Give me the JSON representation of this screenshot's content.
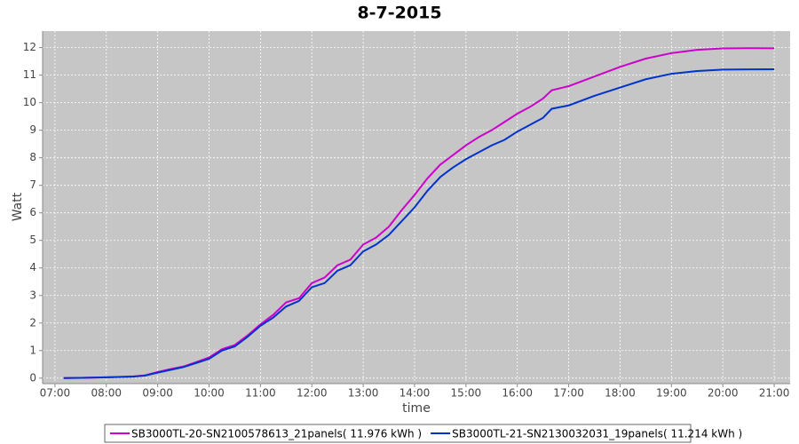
{
  "chart_data": {
    "type": "line",
    "title": "8-7-2015",
    "x_label": "time",
    "y_label": "Watt",
    "x": [
      7.17,
      7.5,
      8,
      8.5,
      8.75,
      9,
      9.25,
      9.5,
      9.75,
      10,
      10.25,
      10.5,
      10.75,
      11,
      11.25,
      11.5,
      11.75,
      12,
      12.25,
      12.5,
      12.75,
      13,
      13.25,
      13.5,
      13.75,
      14,
      14.25,
      14.5,
      14.75,
      15,
      15.25,
      15.5,
      15.75,
      16,
      16.25,
      16.5,
      16.67,
      17,
      17.5,
      18,
      18.5,
      19,
      19.5,
      20,
      20.5,
      21
    ],
    "series": [
      {
        "name": "SB3000TL-20-SN2100578613_21panels( 11.976 kWh )",
        "color": "#cc00cc",
        "values": [
          0,
          0.01,
          0.03,
          0.06,
          0.1,
          0.22,
          0.33,
          0.42,
          0.58,
          0.75,
          1.05,
          1.2,
          1.55,
          1.95,
          2.3,
          2.75,
          2.9,
          3.45,
          3.65,
          4.1,
          4.3,
          4.85,
          5.1,
          5.5,
          6.1,
          6.65,
          7.25,
          7.75,
          8.1,
          8.45,
          8.75,
          9.0,
          9.3,
          9.6,
          9.85,
          10.15,
          10.45,
          10.6,
          10.95,
          11.3,
          11.6,
          11.8,
          11.92,
          11.97,
          11.98,
          11.976
        ]
      },
      {
        "name": "SB3000TL-21-SN2130032031_19panels( 11.214 kWh )",
        "color": "#0033cc",
        "values": [
          0,
          0.01,
          0.03,
          0.05,
          0.09,
          0.2,
          0.3,
          0.4,
          0.55,
          0.7,
          1.0,
          1.15,
          1.5,
          1.9,
          2.2,
          2.6,
          2.8,
          3.3,
          3.45,
          3.9,
          4.1,
          4.6,
          4.85,
          5.2,
          5.7,
          6.2,
          6.8,
          7.3,
          7.65,
          7.95,
          8.2,
          8.45,
          8.65,
          8.95,
          9.2,
          9.45,
          9.78,
          9.9,
          10.25,
          10.55,
          10.85,
          11.05,
          11.15,
          11.2,
          11.21,
          11.214
        ]
      }
    ],
    "xlim": [
      6.76,
      21.31
    ],
    "xticks": [
      {
        "value": 7,
        "label": "07:00"
      },
      {
        "value": 8,
        "label": "08:00"
      },
      {
        "value": 9,
        "label": "09:00"
      },
      {
        "value": 10,
        "label": "10:00"
      },
      {
        "value": 11,
        "label": "11:00"
      },
      {
        "value": 12,
        "label": "12:00"
      },
      {
        "value": 13,
        "label": "13:00"
      },
      {
        "value": 14,
        "label": "14:00"
      },
      {
        "value": 15,
        "label": "15:00"
      },
      {
        "value": 16,
        "label": "16:00"
      },
      {
        "value": 17,
        "label": "17:00"
      },
      {
        "value": 18,
        "label": "18:00"
      },
      {
        "value": 19,
        "label": "19:00"
      },
      {
        "value": 20,
        "label": "20:00"
      },
      {
        "value": 21,
        "label": "21:00"
      }
    ],
    "ylim": [
      -0.2,
      12.6
    ],
    "yticks": [
      0,
      1,
      2,
      3,
      4,
      5,
      6,
      7,
      8,
      9,
      10,
      11,
      12
    ],
    "grid": true
  }
}
